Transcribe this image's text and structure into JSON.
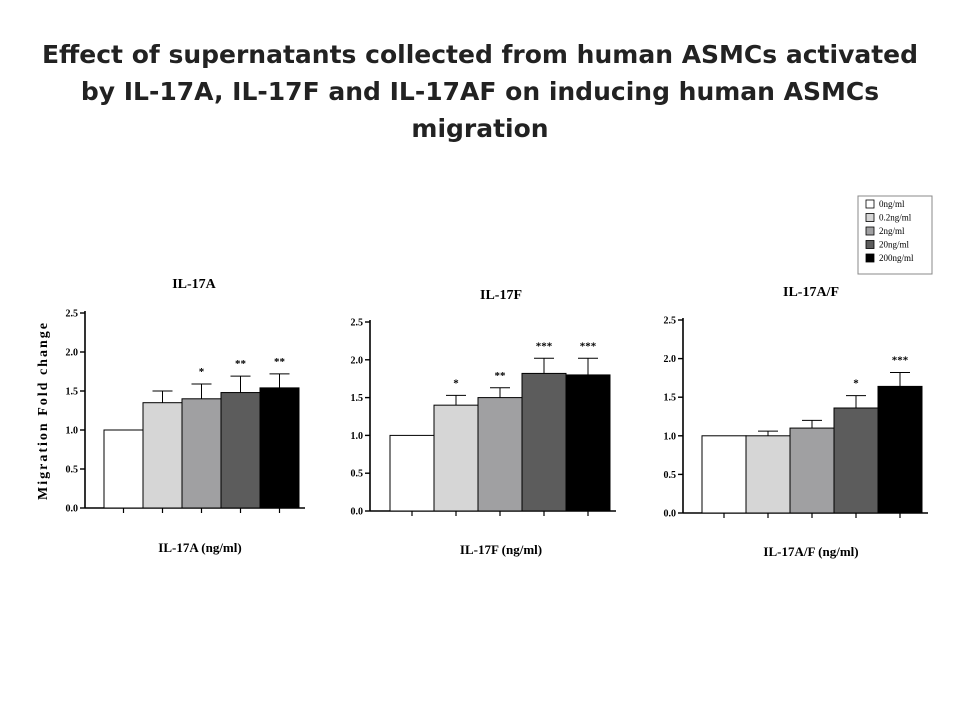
{
  "title": "Effect of supernatants collected from human ASMCs activated by IL-17A, IL-17F and IL-17AF on inducing human ASMCs migration",
  "legend": {
    "entries": [
      "0ng/ml",
      "0.2ng/ml",
      "2ng/ml",
      "20ng/ml",
      "200ng/ml"
    ],
    "colors": [
      "#ffffff",
      "#d6d6d6",
      "#a0a0a2",
      "#5c5c5c",
      "#000000"
    ],
    "placement": "top-right"
  },
  "chart_data": [
    {
      "type": "bar",
      "title": "IL-17A",
      "xlabel": "IL-17A (ng/ml)",
      "ylabel": "Migration Fold change",
      "ylim": [
        0,
        2.5
      ],
      "yticks": [
        "0.0",
        "0.5",
        "1.0",
        "1.5",
        "2.0",
        "2.5"
      ],
      "categories": [
        "0ng/ml",
        "0.2ng/ml",
        "2ng/ml",
        "20ng/ml",
        "200ng/ml"
      ],
      "values": [
        1.0,
        1.35,
        1.4,
        1.48,
        1.54
      ],
      "errors": [
        0,
        0.15,
        0.19,
        0.21,
        0.18
      ],
      "significance": [
        "",
        "",
        "*",
        "**",
        "**"
      ]
    },
    {
      "type": "bar",
      "title": "IL-17F",
      "xlabel": "IL-17F (ng/ml)",
      "ylabel": "",
      "ylim": [
        0,
        2.5
      ],
      "yticks": [
        "0.0",
        "0.5",
        "1.0",
        "1.5",
        "2.0",
        "2.5"
      ],
      "categories": [
        "0ng/ml",
        "0.2ng/ml",
        "2ng/ml",
        "20ng/ml",
        "200ng/ml"
      ],
      "values": [
        1.0,
        1.4,
        1.5,
        1.82,
        1.8
      ],
      "errors": [
        0,
        0.13,
        0.13,
        0.2,
        0.22
      ],
      "significance": [
        "",
        "*",
        "**",
        "***",
        "***"
      ]
    },
    {
      "type": "bar",
      "title": "IL-17A/F",
      "xlabel": "IL-17A/F (ng/ml)",
      "ylabel": "",
      "ylim": [
        0,
        2.5
      ],
      "yticks": [
        "0.0",
        "0.5",
        "1.0",
        "1.5",
        "2.0",
        "2.5"
      ],
      "categories": [
        "0ng/ml",
        "0.2ng/ml",
        "2ng/ml",
        "20ng/ml",
        "200ng/ml"
      ],
      "values": [
        1.0,
        1.0,
        1.1,
        1.36,
        1.64
      ],
      "errors": [
        0,
        0.06,
        0.1,
        0.16,
        0.18
      ],
      "significance": [
        "",
        "",
        "",
        "*",
        "***"
      ]
    }
  ]
}
